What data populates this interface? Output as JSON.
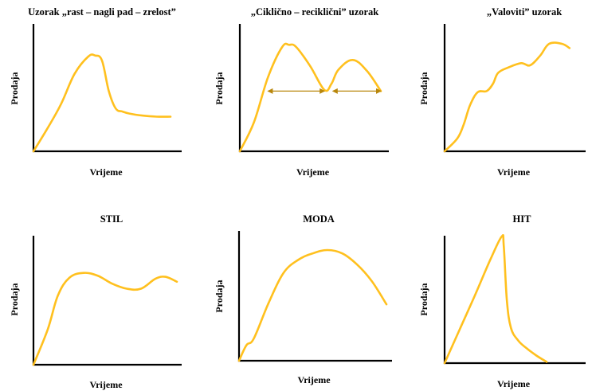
{
  "colors": {
    "curve": "#FFC01E",
    "arrow": "#B8860B",
    "axis": "#000000"
  },
  "chart_data": [
    {
      "type": "line",
      "title": "Uzorak „rast – nagli pad – zrelost”",
      "xlabel": "Vrijeme",
      "ylabel": "Prodaja",
      "grid": false,
      "xlim": [
        0,
        10
      ],
      "ylim": [
        0,
        10
      ],
      "x": [
        0,
        1,
        2,
        3,
        4,
        4.5,
        5,
        5.5,
        6,
        6.5,
        7,
        8,
        9,
        10
      ],
      "y": [
        0,
        2.2,
        4.6,
        7.6,
        9.3,
        9.4,
        8.9,
        5.9,
        4.2,
        3.9,
        3.7,
        3.5,
        3.4,
        3.4
      ]
    },
    {
      "type": "line",
      "title": "„Ciklično – reciklični” uzorak",
      "xlabel": "Vrijeme",
      "ylabel": "Prodaja",
      "grid": false,
      "xlim": [
        0,
        10
      ],
      "ylim": [
        0,
        10
      ],
      "x": [
        0,
        1,
        2,
        3,
        3.5,
        4,
        5,
        6,
        6.5,
        7,
        8,
        9,
        10
      ],
      "y": [
        0,
        2.7,
        6.9,
        9.7,
        9.9,
        9.7,
        7.9,
        5.7,
        6.3,
        7.6,
        8.5,
        7.5,
        5.6
      ],
      "annotations": [
        {
          "type": "double-arrow",
          "x1": 2.0,
          "x2": 6.0,
          "y": 5.6
        },
        {
          "type": "double-arrow",
          "x1": 6.6,
          "x2": 10.0,
          "y": 5.6
        }
      ]
    },
    {
      "type": "line",
      "title": "„Valoviti” uzorak",
      "xlabel": "Vrijeme",
      "ylabel": "Prodaja",
      "grid": false,
      "xlim": [
        0,
        10
      ],
      "ylim": [
        0,
        10
      ],
      "x": [
        0,
        1,
        1.5,
        2,
        2.6,
        3.3,
        3.8,
        4.2,
        5,
        6,
        6.7,
        7.5,
        8.2,
        9.2,
        9.8
      ],
      "y": [
        0,
        1.2,
        2.5,
        4.3,
        5.5,
        5.6,
        6.3,
        7.3,
        7.8,
        8.2,
        8.0,
        8.9,
        10.0,
        10.0,
        9.6
      ]
    },
    {
      "type": "line",
      "title": "STIL",
      "xlabel": "Vrijeme",
      "ylabel": "Prodaja",
      "grid": false,
      "xlim": [
        0,
        10
      ],
      "ylim": [
        0,
        10
      ],
      "x": [
        0,
        1,
        1.7,
        2.5,
        3.5,
        4.5,
        5.5,
        6.5,
        7.5,
        8.5,
        9.2,
        10
      ],
      "y": [
        0,
        3.6,
        7.0,
        8.8,
        9.3,
        9.0,
        8.2,
        7.7,
        7.7,
        8.7,
        8.9,
        8.4
      ]
    },
    {
      "type": "line",
      "title": "MODA",
      "xlabel": "Vrijeme",
      "ylabel": "Prodaja",
      "grid": false,
      "xlim": [
        0,
        10
      ],
      "ylim": [
        0,
        10
      ],
      "x": [
        0,
        0.5,
        1,
        2,
        3,
        4,
        5,
        6,
        7,
        8,
        9,
        10
      ],
      "y": [
        0,
        1.4,
        2.0,
        5.2,
        7.9,
        9.1,
        9.7,
        10.0,
        9.7,
        8.7,
        7.2,
        5.1
      ]
    },
    {
      "type": "line",
      "title": "HIT",
      "xlabel": "Vrijeme",
      "ylabel": "Prodaja",
      "grid": false,
      "xlim": [
        0,
        10
      ],
      "ylim": [
        0,
        10
      ],
      "x": [
        0,
        1.5,
        3,
        4.5,
        5.6,
        5.8,
        6.1,
        6.5,
        7.2,
        8,
        9,
        10
      ],
      "y": [
        0,
        2.7,
        5.4,
        8.2,
        10.0,
        9.3,
        5.0,
        2.8,
        1.8,
        1.2,
        0.6,
        0.1
      ]
    }
  ]
}
